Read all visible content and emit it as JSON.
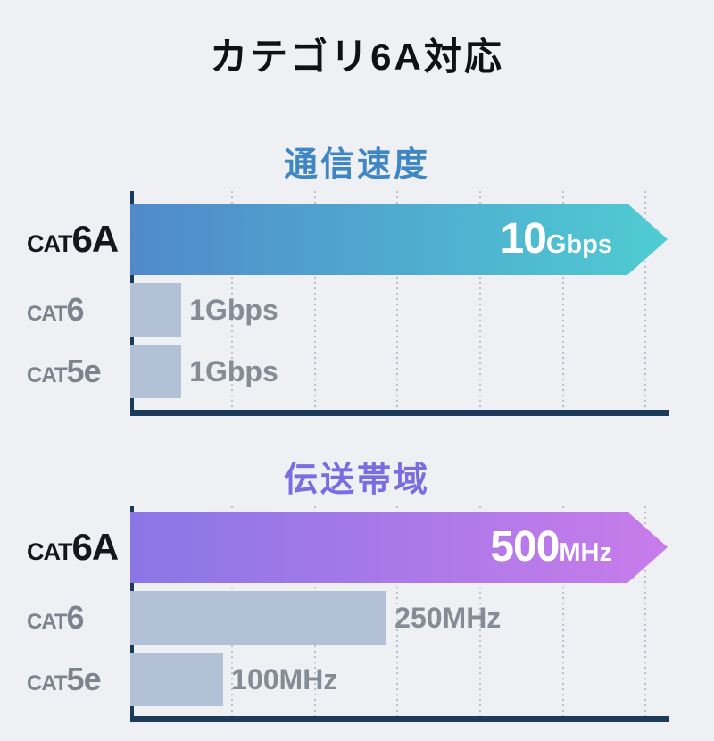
{
  "title": "カテゴリ6A対応",
  "colors": {
    "background": "#eef0f4",
    "axis": "#1c3a5a",
    "grid_dots": "#bcc1cb",
    "muted_bar": "#b3c1d6",
    "muted_text": "#868c96",
    "category_muted_text": "#7d838e",
    "category_highlight_text": "#15171c",
    "bar_value_text": "#ffffff",
    "speed_title": "#3e86c4",
    "band_title": "#7b6ce1",
    "speed_gradient": [
      "#5089cb",
      "#4fccd3"
    ],
    "band_gradient": [
      "#8b76e6",
      "#c87cea"
    ]
  },
  "chart_data": [
    {
      "type": "bar",
      "title": "通信速度",
      "title_color": "#3e86c4",
      "orientation": "horizontal",
      "grid": "vertical-dotted",
      "legend": "none",
      "categories": [
        "CAT6A",
        "CAT6",
        "CAT5e"
      ],
      "values": [
        10,
        1,
        1
      ],
      "unit": "Gbps",
      "value_labels": [
        "10Gbps",
        "1Gbps",
        "1Gbps"
      ],
      "bar_widths_pct": [
        100,
        9.5,
        9.5
      ],
      "rows": [
        {
          "cat_prefix": "CAT",
          "cat_name": "6A",
          "value_num": "10",
          "value_unit": "Gbps",
          "bar_pct": 100,
          "gradient": [
            "#5089cb",
            "#4fccd3"
          ],
          "emphasis": true
        },
        {
          "cat_prefix": "CAT",
          "cat_name": "6",
          "value_text": "1Gbps",
          "bar_pct": 9.5,
          "emphasis": false
        },
        {
          "cat_prefix": "CAT",
          "cat_name": "5e",
          "value_text": "1Gbps",
          "bar_pct": 9.5,
          "emphasis": false
        }
      ]
    },
    {
      "type": "bar",
      "title": "伝送帯域",
      "title_color": "#7b6ce1",
      "orientation": "horizontal",
      "grid": "vertical-dotted",
      "legend": "none",
      "categories": [
        "CAT6A",
        "CAT6",
        "CAT5e"
      ],
      "values": [
        500,
        250,
        100
      ],
      "unit": "MHz",
      "value_labels": [
        "500MHz",
        "250MHz",
        "100MHz"
      ],
      "bar_widths_pct": [
        100,
        47.7,
        17.3
      ],
      "rows": [
        {
          "cat_prefix": "CAT",
          "cat_name": "6A",
          "value_num": "500",
          "value_unit": "MHz",
          "bar_pct": 100,
          "gradient": [
            "#8b76e6",
            "#c87cea"
          ],
          "emphasis": true
        },
        {
          "cat_prefix": "CAT",
          "cat_name": "6",
          "value_text": "250MHz",
          "bar_pct": 47.7,
          "emphasis": false
        },
        {
          "cat_prefix": "CAT",
          "cat_name": "5e",
          "value_text": "100MHz",
          "bar_pct": 17.3,
          "emphasis": false
        }
      ]
    }
  ]
}
